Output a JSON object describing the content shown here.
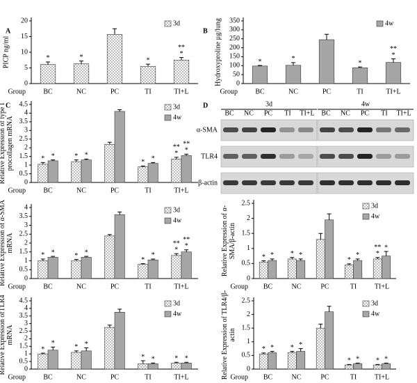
{
  "chart_data": [
    {
      "type": "bar",
      "panel": "A",
      "ylabel": [
        "PICP ng/ml"
      ],
      "xlabel": "Group",
      "categories": [
        "BC",
        "NC",
        "PC",
        "TI",
        "TI+L"
      ],
      "ylim": [
        0,
        20
      ],
      "yticks": [
        0,
        5,
        10,
        15,
        20
      ],
      "legend": "top-right",
      "series": [
        {
          "name": "3d",
          "color": "#ffffff",
          "pattern": "checker",
          "values": [
            6.1,
            6.3,
            15.7,
            5.5,
            7.5
          ],
          "errors": [
            0.8,
            0.9,
            1.8,
            0.7,
            0.8
          ],
          "marks": [
            [
              "*"
            ],
            [
              "*"
            ],
            null,
            [
              "*"
            ],
            [
              "**",
              "*"
            ]
          ]
        }
      ]
    },
    {
      "type": "bar",
      "panel": "B",
      "ylabel": [
        "Hydroxyproline µg/lung"
      ],
      "xlabel": "Group",
      "categories": [
        "BC",
        "NC",
        "PC",
        "TI",
        "TI+L"
      ],
      "ylim": [
        0,
        350
      ],
      "yticks": [
        0,
        50,
        100,
        150,
        200,
        250,
        300,
        350
      ],
      "legend": "top-right",
      "series": [
        {
          "name": "4w",
          "color": "#a6a6a6",
          "values": [
            98,
            102,
            245,
            88,
            118
          ],
          "errors": [
            3,
            15,
            30,
            5,
            20
          ],
          "marks": [
            [
              "*"
            ],
            [
              "*"
            ],
            null,
            [
              "*"
            ],
            [
              "**",
              "*"
            ]
          ]
        }
      ]
    },
    {
      "type": "bar",
      "panel": "C",
      "ylabel": [
        "Relative Expression of type I",
        "procollagen mRNA"
      ],
      "xlabel": "Group",
      "categories": [
        "BC",
        "NC",
        "PC",
        "TI",
        "TI+L"
      ],
      "ylim": [
        0,
        4.5
      ],
      "yticks": [
        0,
        0.5,
        1,
        1.5,
        2,
        2.5,
        3,
        3.5,
        4,
        4.5
      ],
      "legend": "top-right",
      "series": [
        {
          "name": "3d",
          "color": "#ffffff",
          "pattern": "checker",
          "values": [
            1.05,
            1.2,
            2.2,
            0.9,
            1.35
          ],
          "errors": [
            0.1,
            0.1,
            0.12,
            0.05,
            0.1
          ],
          "marks": [
            [
              "*"
            ],
            [
              "*"
            ],
            null,
            [
              "*"
            ],
            [
              "**",
              "*"
            ]
          ]
        },
        {
          "name": "4w",
          "color": "#a6a6a6",
          "values": [
            1.25,
            1.3,
            4.1,
            1.1,
            1.55
          ],
          "errors": [
            0.05,
            0.05,
            0.1,
            0.05,
            0.08
          ],
          "marks": [
            [
              "*"
            ],
            [
              "*"
            ],
            null,
            [
              "*"
            ],
            [
              "**",
              "*"
            ]
          ]
        }
      ]
    },
    {
      "type": "bar",
      "ylabel": [
        "Relative Expression of α-SMA",
        "mRNA"
      ],
      "xlabel": "Group",
      "categories": [
        "BC",
        "NC",
        "PC",
        "TI",
        "TI+L"
      ],
      "ylim": [
        0,
        4
      ],
      "yticks": [
        0,
        0.5,
        1,
        1.5,
        2,
        2.5,
        3,
        3.5,
        4
      ],
      "legend": "top-right",
      "series": [
        {
          "name": "3d",
          "color": "#ffffff",
          "pattern": "checker",
          "values": [
            1.0,
            1.0,
            2.4,
            0.8,
            1.3
          ],
          "errors": [
            0.1,
            0.08,
            0.08,
            0.04,
            0.1
          ],
          "marks": [
            [
              "*"
            ],
            [
              "*"
            ],
            null,
            [
              "*"
            ],
            [
              "**",
              "*"
            ]
          ]
        },
        {
          "name": "4w",
          "color": "#a6a6a6",
          "values": [
            1.2,
            1.2,
            3.6,
            1.05,
            1.5
          ],
          "errors": [
            0.05,
            0.05,
            0.15,
            0.05,
            0.12
          ],
          "marks": [
            [
              "*"
            ],
            [
              "*"
            ],
            null,
            [
              "*"
            ],
            [
              "**",
              "*"
            ]
          ]
        }
      ]
    },
    {
      "type": "bar",
      "ylabel": [
        "Relative Expression ofTLR4",
        "mRNA"
      ],
      "xlabel": "Group",
      "categories": [
        "BC",
        "NC",
        "PC",
        "TI",
        "TI+L"
      ],
      "ylim": [
        0,
        4.5
      ],
      "yticks": [
        0,
        0.5,
        1,
        1.5,
        2,
        2.5,
        3,
        3.5,
        4,
        4.5
      ],
      "legend": "top-right",
      "series": [
        {
          "name": "3d",
          "color": "#ffffff",
          "pattern": "checker",
          "values": [
            1.0,
            1.1,
            2.75,
            0.35,
            0.4
          ],
          "errors": [
            0.05,
            0.1,
            0.15,
            0.2,
            0.05
          ],
          "marks": [
            [
              "*"
            ],
            [
              "*"
            ],
            null,
            [
              "*"
            ],
            [
              "*"
            ]
          ]
        },
        {
          "name": "4w",
          "color": "#a6a6a6",
          "values": [
            1.25,
            1.2,
            3.75,
            0.35,
            0.4
          ],
          "errors": [
            0.2,
            0.2,
            0.2,
            0.05,
            0.05
          ],
          "marks": [
            [
              "*"
            ],
            [
              "*"
            ],
            null,
            [
              "*"
            ],
            [
              "*"
            ]
          ]
        }
      ]
    },
    {
      "type": "bar",
      "ylabel": [
        "Relative Expression of α-",
        "SMA/β-actin"
      ],
      "xlabel": "Group",
      "categories": [
        "BC",
        "NC",
        "PC",
        "TI",
        "TI+L"
      ],
      "ylim": [
        0,
        2.5
      ],
      "yticks": [
        0,
        0.5,
        1,
        1.5,
        2,
        2.5
      ],
      "legend": "top-right",
      "series": [
        {
          "name": "3d",
          "color": "#ffffff",
          "pattern": "checker",
          "values": [
            0.55,
            0.65,
            1.3,
            0.45,
            0.65
          ],
          "errors": [
            0.04,
            0.05,
            0.2,
            0.04,
            0.05
          ],
          "marks": [
            [
              "*"
            ],
            [
              "*"
            ],
            null,
            [
              "*"
            ],
            [
              "**",
              "*"
            ]
          ]
        },
        {
          "name": "4w",
          "color": "#a6a6a6",
          "values": [
            0.6,
            0.6,
            1.95,
            0.6,
            0.75
          ],
          "errors": [
            0.05,
            0.05,
            0.2,
            0.05,
            0.15
          ],
          "marks": [
            [
              "*"
            ],
            [
              "*"
            ],
            null,
            [
              "*"
            ],
            [
              "*"
            ]
          ]
        }
      ]
    },
    {
      "type": "bar",
      "ylabel": [
        "Relative Expression of TLR4/β-",
        "actin"
      ],
      "xlabel": "Group",
      "categories": [
        "BC",
        "NC",
        "PC",
        "TI",
        "TI+L"
      ],
      "ylim": [
        0,
        2.5
      ],
      "yticks": [
        0,
        0.5,
        1,
        1.5,
        2,
        2.5
      ],
      "legend": "top-right",
      "series": [
        {
          "name": "3d",
          "color": "#ffffff",
          "pattern": "checker",
          "values": [
            0.55,
            0.6,
            1.5,
            0.15,
            0.15
          ],
          "errors": [
            0.04,
            0.05,
            0.15,
            0.02,
            0.02
          ],
          "marks": [
            [
              "*"
            ],
            [
              "*"
            ],
            null,
            [
              "*"
            ],
            [
              "*"
            ]
          ]
        },
        {
          "name": "4w",
          "color": "#a6a6a6",
          "values": [
            0.6,
            0.65,
            2.1,
            0.2,
            0.2
          ],
          "errors": [
            0.05,
            0.1,
            0.2,
            0.02,
            0.02
          ],
          "marks": [
            [
              "*"
            ],
            [
              "*"
            ],
            null,
            [
              "*"
            ],
            [
              "*"
            ]
          ]
        }
      ]
    }
  ],
  "blot": {
    "panel": "D",
    "groups": [
      "3d",
      "4w"
    ],
    "lanes": [
      "BC",
      "NC",
      "PC",
      "TI",
      "TI+L"
    ],
    "rows": [
      "α-SMA",
      "TLR4",
      "β-actin"
    ]
  }
}
